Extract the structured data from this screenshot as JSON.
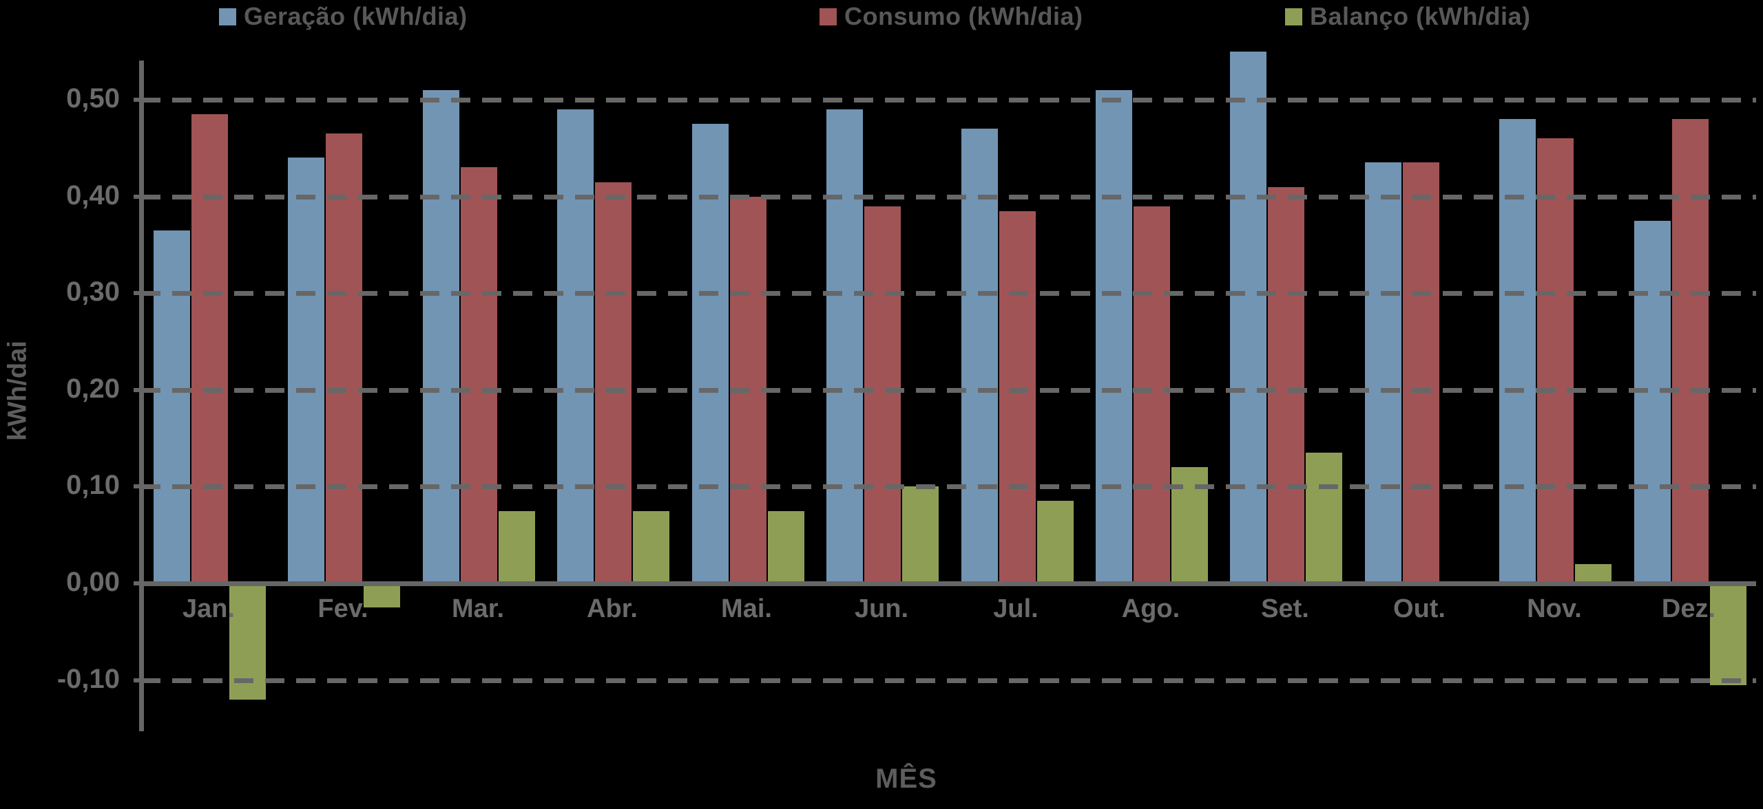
{
  "colors": {
    "background": "#000000",
    "geracao": "#7295B4",
    "consumo": "#A15456",
    "balanco": "#8E9F55",
    "axis_gray": "#666666",
    "label_gray": "#6B6B6B",
    "legend_text_gray": "#585858"
  },
  "legend": {
    "items": [
      {
        "label": "Geração (kWh/dia)",
        "color": "#7295B4"
      },
      {
        "label": "Consumo (kWh/dia)",
        "color": "#A15456"
      },
      {
        "label": "Balanço (kWh/dia)",
        "color": "#8E9F55"
      }
    ]
  },
  "chart_data": {
    "type": "bar",
    "title": "",
    "xlabel": "MÊS",
    "ylabel": "kWh/dai",
    "categories": [
      "Jan.",
      "Fev.",
      "Mar.",
      "Abr.",
      "Mai.",
      "Jun.",
      "Jul.",
      "Ago.",
      "Set.",
      "Out.",
      "Nov.",
      "Dez."
    ],
    "series": [
      {
        "name": "Geração (kWh/dia)",
        "key": "geracao",
        "color": "#7295B4",
        "values": [
          0.365,
          0.44,
          0.51,
          0.49,
          0.475,
          0.49,
          0.47,
          0.51,
          0.55,
          0.435,
          0.48,
          0.375
        ]
      },
      {
        "name": "Consumo (kWh/dia)",
        "key": "consumo",
        "color": "#A15456",
        "values": [
          0.485,
          0.465,
          0.43,
          0.415,
          0.4,
          0.39,
          0.385,
          0.39,
          0.41,
          0.435,
          0.46,
          0.48
        ]
      },
      {
        "name": "Balanço (kWh/dia)",
        "key": "balanco",
        "color": "#8E9F55",
        "values": [
          -0.12,
          -0.025,
          0.075,
          0.075,
          0.075,
          0.1,
          0.085,
          0.12,
          0.135,
          0.0,
          0.02,
          -0.105
        ]
      }
    ],
    "ylim": [
      -0.155,
      0.55
    ],
    "yticks": [
      {
        "value": 0.5,
        "label": "0,50"
      },
      {
        "value": 0.4,
        "label": "0,40"
      },
      {
        "value": 0.3,
        "label": "0,30"
      },
      {
        "value": 0.2,
        "label": "0,20"
      },
      {
        "value": 0.1,
        "label": "0,10"
      },
      {
        "value": 0.0,
        "label": "0,00"
      },
      {
        "value": -0.1,
        "label": "-0,10"
      }
    ],
    "gridline_values": [
      0.5,
      0.4,
      0.3,
      0.2,
      0.1,
      -0.1
    ],
    "grid": "horizontal-dashed",
    "legend_position": "top"
  }
}
